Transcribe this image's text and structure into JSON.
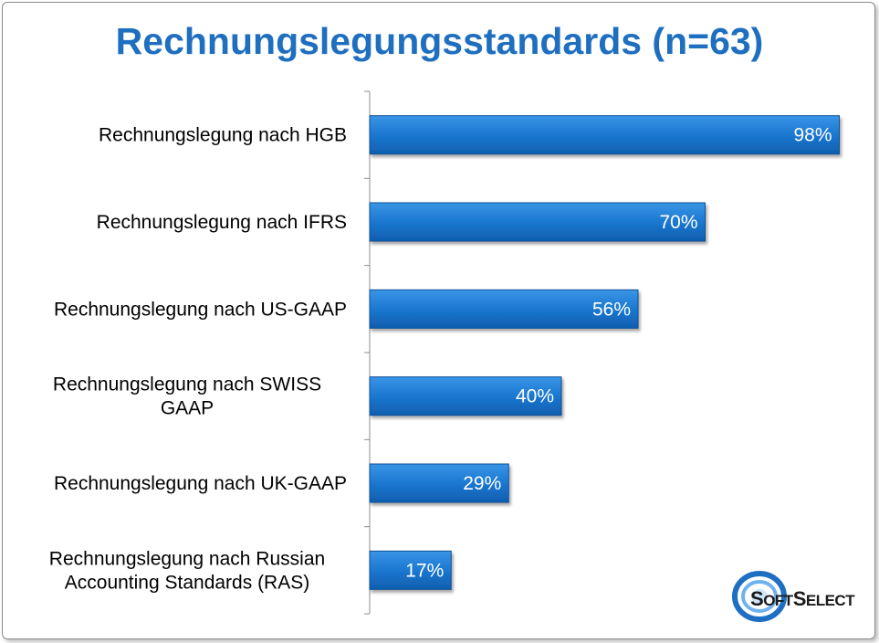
{
  "title": "Rechnungslegungsstandards (n=63)",
  "logo": {
    "big1": "S",
    "small1": "OFT",
    "big2": "S",
    "small2": "ELECT"
  },
  "colors": {
    "title": "#1f6fc0",
    "bar": "#1b78d0",
    "bar_dark": "#0e4f97"
  },
  "chart_data": {
    "type": "bar",
    "orientation": "horizontal",
    "title": "Rechnungslegungsstandards (n=63)",
    "categories": [
      [
        "Rechnungslegung nach HGB"
      ],
      [
        "Rechnungslegung nach IFRS"
      ],
      [
        "Rechnungslegung nach US-GAAP"
      ],
      [
        "Rechnungslegung nach SWISS",
        "GAAP"
      ],
      [
        "Rechnungslegung nach UK-GAAP"
      ],
      [
        "Rechnungslegung nach Russian",
        "Accounting Standards (RAS)"
      ]
    ],
    "values": [
      98,
      70,
      56,
      40,
      29,
      17
    ],
    "value_labels": [
      "98%",
      "70%",
      "56%",
      "40%",
      "29%",
      "17%"
    ],
    "xlim": [
      0,
      100
    ],
    "grid": false,
    "legend": "none"
  }
}
